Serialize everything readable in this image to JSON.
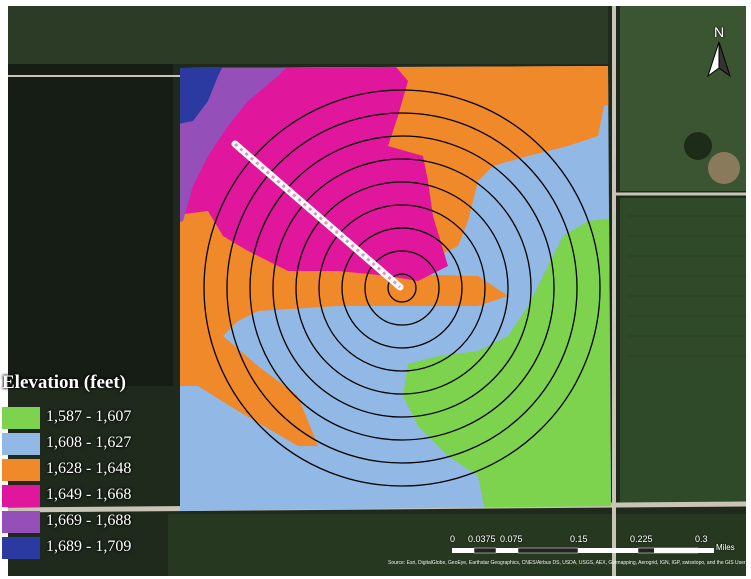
{
  "legend": {
    "title": "Elevation (feet)",
    "classes": [
      {
        "label": "1,587 - 1,607",
        "color": "#7dd24e"
      },
      {
        "label": "1,608 - 1,627",
        "color": "#92b9e6"
      },
      {
        "label": "1,628 - 1,648",
        "color": "#f0892a"
      },
      {
        "label": "1,649 - 1,668",
        "color": "#e0169c"
      },
      {
        "label": "1,669 - 1,688",
        "color": "#9450b8"
      },
      {
        "label": "1,689 - 1,709",
        "color": "#2a3aa0"
      }
    ]
  },
  "north_arrow": {
    "label": "N"
  },
  "scale_bar": {
    "ticks": [
      "0",
      "0.0375",
      "0.075",
      "0.15",
      "0.225",
      "0.3"
    ],
    "unit": "Miles"
  },
  "attribution": "Source: Esri, DigitalGlobe, GeoEye, Earthstar Geographics, CNES/Airbus DS, USDA, USGS, AEX, Getmapping, Aerogrid, IGN, IGP, swisstopo, and the GIS User Community",
  "map": {
    "pivot_rings": 9,
    "imagery_colors": {
      "field_dark": "#1f2a1c",
      "field_green": "#3d5a30",
      "road": "#c9c4b6"
    }
  }
}
